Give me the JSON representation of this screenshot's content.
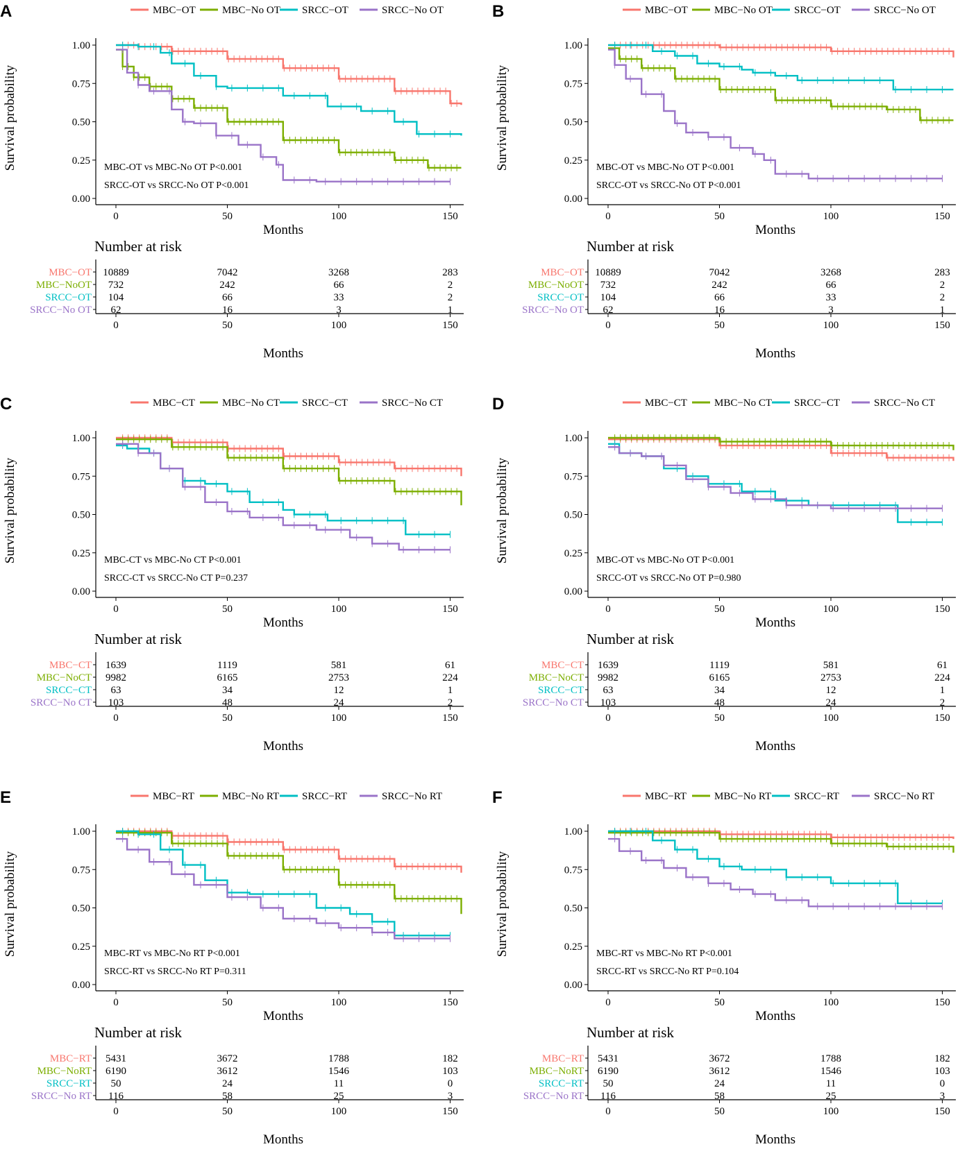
{
  "colors": {
    "MBC_treated": "#F8766D",
    "MBC_untreated": "#7CAE00",
    "SRCC_treated": "#00BFC4",
    "SRCC_untreated": "#9A73C8"
  },
  "axis": {
    "ylabel": "Survival probability",
    "xlabel": "Months",
    "yticks": [
      "0.00",
      "0.25",
      "0.50",
      "0.75",
      "1.00"
    ],
    "xticks": [
      "0",
      "50",
      "100",
      "150"
    ],
    "xlim": [
      0,
      155
    ],
    "ylim": [
      0,
      1
    ]
  },
  "risk_table_title": "Number at risk",
  "chart_data": [
    {
      "type": "line",
      "panel": "A",
      "legend": [
        "MBC−OT",
        "MBC−No OT",
        "SRCC−OT",
        "SRCC−No OT"
      ],
      "annotations": [
        "MBC-OT vs MBC-No OT P<0.001",
        "SRCC-OT vs SRCC-No OT P<0.001"
      ],
      "risk_labels": [
        "MBC−OT",
        "MBC−NoOT",
        "SRCC−OT",
        "SRCC−No OT"
      ],
      "risk_values": [
        [
          "10889",
          "7042",
          "3268",
          "283"
        ],
        [
          "732",
          "242",
          "66",
          "2"
        ],
        [
          "104",
          "66",
          "33",
          "2"
        ],
        [
          "62",
          "16",
          "3",
          "1"
        ]
      ],
      "series": [
        {
          "name": "MBC−OT",
          "x": [
            0,
            10,
            25,
            50,
            75,
            100,
            125,
            150,
            155
          ],
          "y": [
            1.0,
            0.99,
            0.96,
            0.91,
            0.85,
            0.78,
            0.7,
            0.62,
            0.61
          ]
        },
        {
          "name": "MBC−No OT",
          "x": [
            0,
            3,
            8,
            15,
            25,
            35,
            50,
            75,
            100,
            125,
            140,
            155
          ],
          "y": [
            0.97,
            0.86,
            0.79,
            0.73,
            0.65,
            0.59,
            0.5,
            0.38,
            0.3,
            0.25,
            0.2,
            0.2
          ]
        },
        {
          "name": "SRCC−OT",
          "x": [
            0,
            10,
            20,
            25,
            35,
            45,
            50,
            75,
            95,
            110,
            125,
            135,
            155
          ],
          "y": [
            1.0,
            0.99,
            0.95,
            0.88,
            0.8,
            0.73,
            0.72,
            0.67,
            0.6,
            0.57,
            0.5,
            0.42,
            0.41
          ]
        },
        {
          "name": "SRCC−No OT",
          "x": [
            0,
            5,
            10,
            15,
            25,
            30,
            35,
            45,
            55,
            65,
            72,
            75,
            90,
            150
          ],
          "y": [
            0.97,
            0.82,
            0.74,
            0.7,
            0.58,
            0.5,
            0.49,
            0.41,
            0.35,
            0.27,
            0.22,
            0.12,
            0.11,
            0.11
          ]
        }
      ]
    },
    {
      "type": "line",
      "panel": "B",
      "legend": [
        "MBC−OT",
        "MBC−No OT",
        "SRCC−OT",
        "SRCC−No OT"
      ],
      "annotations": [
        "MBC-OT vs MBC-No OT P<0.001",
        "SRCC-OT vs SRCC-No OT P<0.001"
      ],
      "risk_labels": [
        "MBC−OT",
        "MBC−NoOT",
        "SRCC−OT",
        "SRCC−No OT"
      ],
      "risk_values": [
        [
          "10889",
          "7042",
          "3268",
          "283"
        ],
        [
          "732",
          "242",
          "66",
          "2"
        ],
        [
          "104",
          "66",
          "33",
          "2"
        ],
        [
          "62",
          "16",
          "3",
          "1"
        ]
      ],
      "series": [
        {
          "name": "MBC−OT",
          "x": [
            0,
            50,
            100,
            155
          ],
          "y": [
            1.0,
            0.985,
            0.96,
            0.92
          ]
        },
        {
          "name": "MBC−No OT",
          "x": [
            0,
            5,
            15,
            30,
            50,
            75,
            100,
            125,
            140,
            155
          ],
          "y": [
            0.98,
            0.91,
            0.85,
            0.78,
            0.71,
            0.64,
            0.6,
            0.58,
            0.51,
            0.51
          ]
        },
        {
          "name": "SRCC−OT",
          "x": [
            0,
            20,
            30,
            40,
            50,
            60,
            65,
            75,
            85,
            100,
            120,
            128,
            155
          ],
          "y": [
            1.0,
            0.96,
            0.93,
            0.88,
            0.86,
            0.84,
            0.82,
            0.8,
            0.77,
            0.77,
            0.77,
            0.71,
            0.71
          ]
        },
        {
          "name": "SRCC−No OT",
          "x": [
            0,
            3,
            8,
            15,
            25,
            30,
            35,
            45,
            55,
            65,
            70,
            75,
            90,
            150
          ],
          "y": [
            0.97,
            0.87,
            0.78,
            0.68,
            0.57,
            0.49,
            0.43,
            0.4,
            0.33,
            0.29,
            0.25,
            0.16,
            0.13,
            0.13
          ]
        }
      ]
    },
    {
      "type": "line",
      "panel": "C",
      "legend": [
        "MBC−CT",
        "MBC−No CT",
        "SRCC−CT",
        "SRCC−No CT"
      ],
      "annotations": [
        "MBC-CT vs MBC-No CT P<0.001",
        "SRCC-CT vs SRCC-No CT P=0.237"
      ],
      "risk_labels": [
        "MBC−CT",
        "MBC−NoCT",
        "SRCC−CT",
        "SRCC−No CT"
      ],
      "risk_values": [
        [
          "1639",
          "1119",
          "581",
          "61"
        ],
        [
          "9982",
          "6165",
          "2753",
          "224"
        ],
        [
          "63",
          "34",
          "12",
          "1"
        ],
        [
          "103",
          "48",
          "24",
          "2"
        ]
      ],
      "series": [
        {
          "name": "MBC−CT",
          "x": [
            0,
            25,
            50,
            75,
            100,
            125,
            155
          ],
          "y": [
            1.0,
            0.97,
            0.93,
            0.88,
            0.84,
            0.8,
            0.75
          ]
        },
        {
          "name": "MBC−No CT",
          "x": [
            0,
            25,
            50,
            75,
            100,
            125,
            155
          ],
          "y": [
            0.99,
            0.94,
            0.87,
            0.8,
            0.72,
            0.65,
            0.56
          ]
        },
        {
          "name": "SRCC−CT",
          "x": [
            0,
            5,
            15,
            20,
            30,
            40,
            50,
            60,
            75,
            80,
            95,
            105,
            127,
            130,
            150
          ],
          "y": [
            0.95,
            0.93,
            0.9,
            0.8,
            0.72,
            0.7,
            0.65,
            0.58,
            0.53,
            0.5,
            0.46,
            0.46,
            0.46,
            0.37,
            0.37
          ]
        },
        {
          "name": "SRCC−No CT",
          "x": [
            0,
            10,
            20,
            30,
            40,
            50,
            60,
            75,
            90,
            105,
            115,
            127,
            150
          ],
          "y": [
            0.96,
            0.9,
            0.8,
            0.68,
            0.58,
            0.52,
            0.48,
            0.43,
            0.4,
            0.35,
            0.31,
            0.27,
            0.27
          ]
        }
      ]
    },
    {
      "type": "line",
      "panel": "D",
      "legend": [
        "MBC−CT",
        "MBC−No CT",
        "SRCC−CT",
        "SRCC−No CT"
      ],
      "annotations": [
        "MBC-OT vs MBC-No OT P<0.001",
        "SRCC-OT vs SRCC-No OT P=0.980"
      ],
      "risk_labels": [
        "MBC−CT",
        "MBC−NoCT",
        "SRCC−CT",
        "SRCC−No CT"
      ],
      "risk_values": [
        [
          "1639",
          "1119",
          "581",
          "61"
        ],
        [
          "9982",
          "6165",
          "2753",
          "224"
        ],
        [
          "63",
          "34",
          "12",
          "1"
        ],
        [
          "103",
          "48",
          "24",
          "2"
        ]
      ],
      "series": [
        {
          "name": "MBC−CT",
          "x": [
            0,
            50,
            100,
            125,
            155
          ],
          "y": [
            0.99,
            0.95,
            0.9,
            0.87,
            0.85
          ]
        },
        {
          "name": "MBC−No CT",
          "x": [
            0,
            50,
            100,
            155
          ],
          "y": [
            1.0,
            0.975,
            0.95,
            0.92
          ]
        },
        {
          "name": "SRCC−CT",
          "x": [
            0,
            5,
            15,
            25,
            35,
            45,
            60,
            75,
            90,
            110,
            127,
            130,
            150
          ],
          "y": [
            0.96,
            0.9,
            0.88,
            0.8,
            0.75,
            0.7,
            0.65,
            0.59,
            0.56,
            0.56,
            0.56,
            0.45,
            0.45
          ]
        },
        {
          "name": "SRCC−No CT",
          "x": [
            0,
            5,
            15,
            25,
            35,
            45,
            55,
            65,
            80,
            100,
            150
          ],
          "y": [
            0.94,
            0.9,
            0.88,
            0.82,
            0.73,
            0.68,
            0.64,
            0.6,
            0.56,
            0.54,
            0.54
          ]
        }
      ]
    },
    {
      "type": "line",
      "panel": "E",
      "legend": [
        "MBC−RT",
        "MBC−No RT",
        "SRCC−RT",
        "SRCC−No RT"
      ],
      "annotations": [
        "MBC-RT vs MBC-No RT P<0.001",
        "SRCC-RT vs SRCC-No RT P=0.311"
      ],
      "risk_labels": [
        "MBC−RT",
        "MBC−NoRT",
        "SRCC−RT",
        "SRCC−No RT"
      ],
      "risk_values": [
        [
          "5431",
          "3672",
          "1788",
          "182"
        ],
        [
          "6190",
          "3612",
          "1546",
          "103"
        ],
        [
          "50",
          "24",
          "11",
          "0"
        ],
        [
          "116",
          "58",
          "25",
          "3"
        ]
      ],
      "series": [
        {
          "name": "MBC−RT",
          "x": [
            0,
            25,
            50,
            75,
            100,
            125,
            155
          ],
          "y": [
            1.0,
            0.97,
            0.93,
            0.88,
            0.82,
            0.77,
            0.73
          ]
        },
        {
          "name": "MBC−No RT",
          "x": [
            0,
            25,
            50,
            75,
            100,
            125,
            155
          ],
          "y": [
            0.99,
            0.92,
            0.84,
            0.75,
            0.65,
            0.56,
            0.46
          ]
        },
        {
          "name": "SRCC−RT",
          "x": [
            0,
            10,
            20,
            30,
            40,
            50,
            60,
            75,
            90,
            105,
            115,
            125,
            150
          ],
          "y": [
            1.0,
            0.98,
            0.88,
            0.78,
            0.68,
            0.6,
            0.59,
            0.59,
            0.5,
            0.46,
            0.41,
            0.32,
            0.32
          ]
        },
        {
          "name": "SRCC−No RT",
          "x": [
            0,
            5,
            15,
            25,
            35,
            50,
            65,
            75,
            90,
            100,
            115,
            125,
            150
          ],
          "y": [
            0.95,
            0.88,
            0.8,
            0.72,
            0.65,
            0.57,
            0.5,
            0.43,
            0.4,
            0.37,
            0.34,
            0.3,
            0.3
          ]
        }
      ]
    },
    {
      "type": "line",
      "panel": "F",
      "legend": [
        "MBC−RT",
        "MBC−No RT",
        "SRCC−RT",
        "SRCC−No RT"
      ],
      "annotations": [
        "MBC-RT vs MBC-No RT P<0.001",
        "SRCC-RT vs SRCC-No RT P=0.104"
      ],
      "risk_labels": [
        "MBC−RT",
        "MBC−NoRT",
        "SRCC−RT",
        "SRCC−No RT"
      ],
      "risk_values": [
        [
          "5431",
          "3672",
          "1788",
          "182"
        ],
        [
          "6190",
          "3612",
          "1546",
          "103"
        ],
        [
          "50",
          "24",
          "11",
          "0"
        ],
        [
          "116",
          "58",
          "25",
          "3"
        ]
      ],
      "series": [
        {
          "name": "MBC−RT",
          "x": [
            0,
            50,
            100,
            155
          ],
          "y": [
            1.0,
            0.98,
            0.96,
            0.95
          ]
        },
        {
          "name": "MBC−No RT",
          "x": [
            0,
            50,
            100,
            125,
            155
          ],
          "y": [
            0.99,
            0.95,
            0.92,
            0.9,
            0.86
          ]
        },
        {
          "name": "SRCC−RT",
          "x": [
            0,
            10,
            20,
            30,
            40,
            50,
            60,
            75,
            80,
            100,
            127,
            130,
            150
          ],
          "y": [
            1.0,
            1.0,
            0.94,
            0.88,
            0.82,
            0.77,
            0.75,
            0.75,
            0.7,
            0.66,
            0.66,
            0.53,
            0.53
          ]
        },
        {
          "name": "SRCC−No RT",
          "x": [
            0,
            5,
            15,
            25,
            35,
            45,
            55,
            65,
            75,
            90,
            150
          ],
          "y": [
            0.95,
            0.87,
            0.81,
            0.76,
            0.7,
            0.66,
            0.62,
            0.59,
            0.55,
            0.51,
            0.51
          ]
        }
      ]
    }
  ]
}
